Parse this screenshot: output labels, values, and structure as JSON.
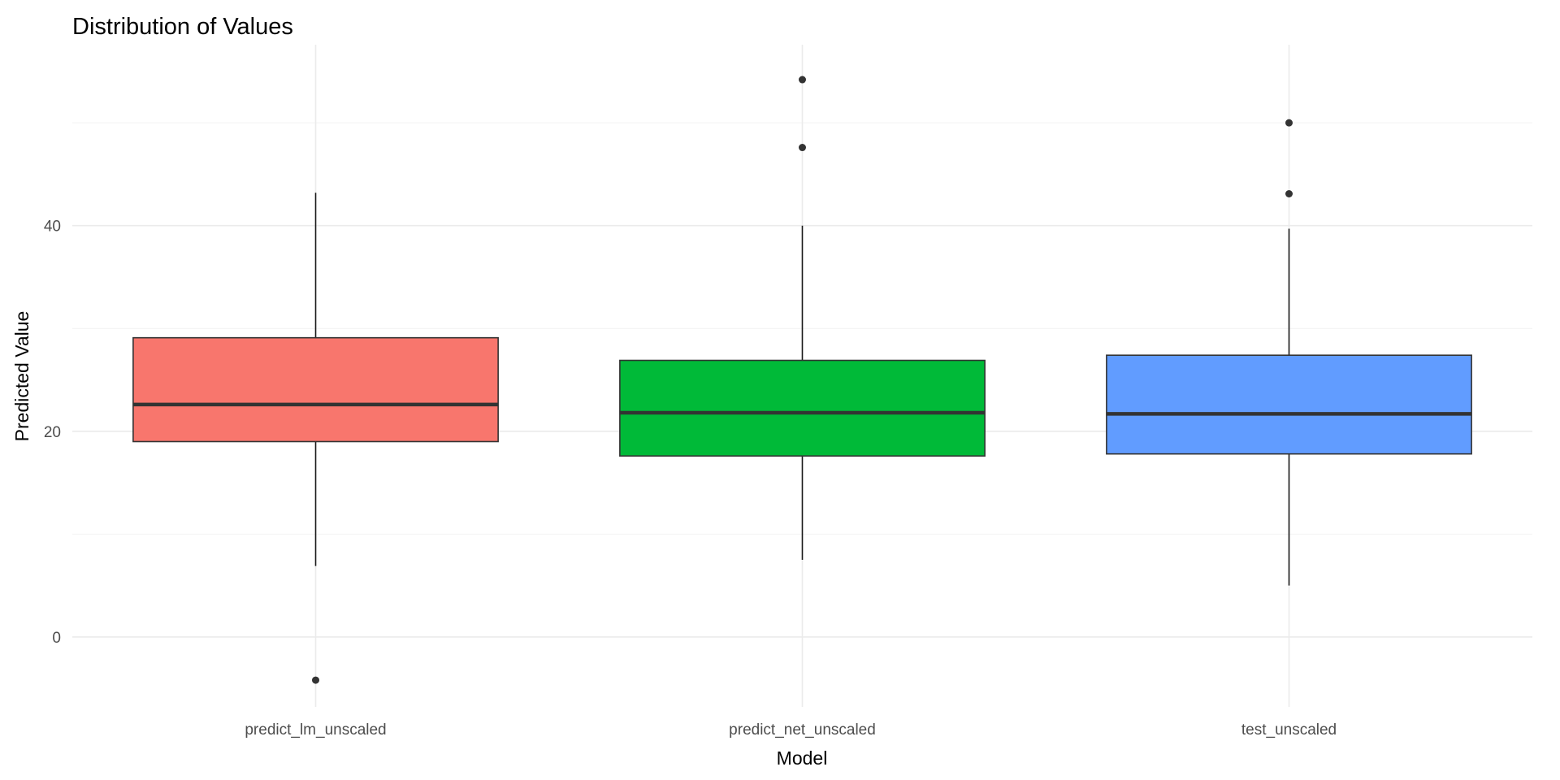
{
  "chart_data": {
    "type": "boxplot",
    "title": "Distribution of Values",
    "xlabel": "Model",
    "ylabel": "Predicted Value",
    "ylim": [
      -6.8,
      57.6
    ],
    "yticks": [
      0,
      20,
      40
    ],
    "yticks_minor": [
      10,
      30,
      50
    ],
    "grid": true,
    "legend": "none",
    "categories": [
      "predict_lm_unscaled",
      "predict_net_unscaled",
      "test_unscaled"
    ],
    "series": [
      {
        "name": "predict_lm_unscaled",
        "color": "#F8766D",
        "whisker_low": 6.9,
        "q1": 19.0,
        "median": 22.6,
        "q3": 29.1,
        "whisker_high": 43.2,
        "outliers": [
          -4.2
        ]
      },
      {
        "name": "predict_net_unscaled",
        "color": "#00BA38",
        "whisker_low": 7.5,
        "q1": 17.6,
        "median": 21.8,
        "q3": 26.9,
        "whisker_high": 40.0,
        "outliers": [
          47.6,
          54.2
        ]
      },
      {
        "name": "test_unscaled",
        "color": "#619CFF",
        "whisker_low": 5.0,
        "q1": 17.8,
        "median": 21.7,
        "q3": 27.4,
        "whisker_high": 39.7,
        "outliers": [
          43.1,
          50.0
        ]
      }
    ]
  }
}
